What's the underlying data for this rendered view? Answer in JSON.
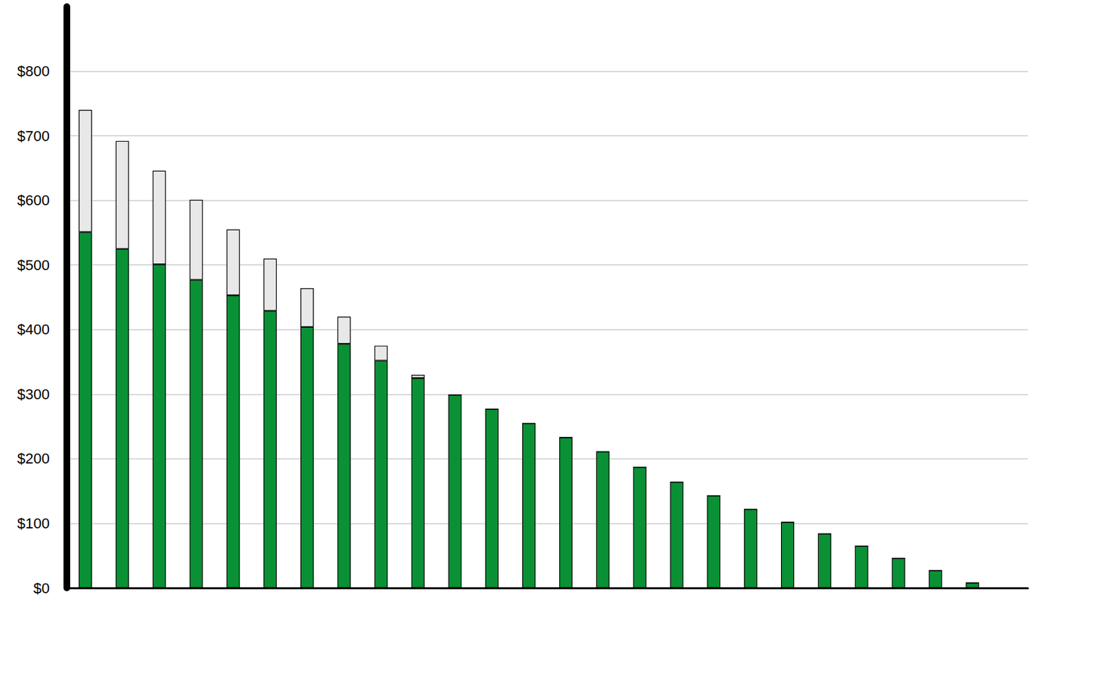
{
  "chart_data": {
    "type": "bar",
    "stacked": true,
    "grid": true,
    "tick_labels": "y",
    "categories": [
      null,
      null,
      null,
      null,
      null,
      null,
      null,
      null,
      null,
      null,
      null,
      null,
      null,
      null,
      null,
      null,
      null,
      null,
      null,
      null,
      null,
      null,
      null,
      null,
      null,
      null
    ],
    "series": [
      {
        "color": "#0a9135",
        "values": [
          551,
          525,
          501,
          477,
          453,
          429,
          404,
          378,
          352,
          325,
          299,
          277,
          255,
          233,
          211,
          187,
          164,
          143,
          122,
          102,
          84,
          65,
          46,
          27,
          8,
          0
        ]
      },
      {
        "color": "#e8e8e8",
        "values": [
          189,
          167,
          145,
          124,
          102,
          81,
          60,
          42,
          23,
          5,
          0,
          0,
          0,
          0,
          0,
          0,
          0,
          0,
          0,
          0,
          0,
          0,
          0,
          0,
          0,
          0
        ]
      }
    ],
    "ylim": [
      0,
      900
    ],
    "yticks": [
      {
        "value": 0,
        "label": "$0"
      },
      {
        "value": 100,
        "label": "$100"
      },
      {
        "value": 200,
        "label": "$200"
      },
      {
        "value": 300,
        "label": "$300"
      },
      {
        "value": 400,
        "label": "$400"
      },
      {
        "value": 500,
        "label": "$500"
      },
      {
        "value": 600,
        "label": "$600"
      },
      {
        "value": 700,
        "label": "$700"
      },
      {
        "value": 800,
        "label": "$800"
      }
    ]
  }
}
